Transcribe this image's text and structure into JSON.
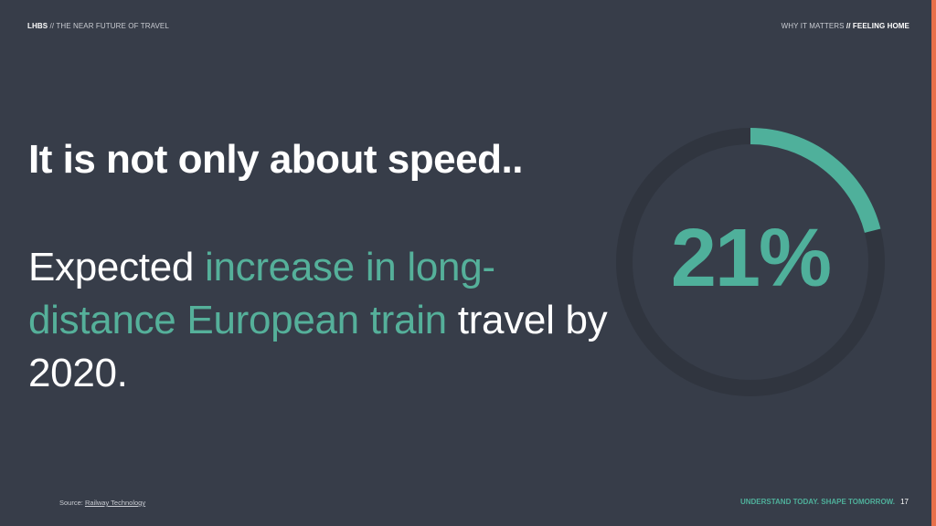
{
  "header": {
    "left_brand": "LHBS",
    "left_sep": " // ",
    "left_title": "THE NEAR FUTURE OF TRAVEL",
    "right_section": "WHY IT MATTERS",
    "right_sep": " // ",
    "right_topic": "FEELING HOME"
  },
  "main": {
    "title": "It is not only about speed..",
    "body_part1": "Expected ",
    "body_highlight": "increase in long-distance European train",
    "body_part2": " travel by 2020."
  },
  "stat": {
    "value_label": "21%",
    "fraction": 0.21,
    "ring_color": "#30353f",
    "arc_color": "#4fb09b"
  },
  "footer": {
    "source_label": "Source: ",
    "source_link": "Railway Technology",
    "tagline": "UNDERSTAND TODAY. SHAPE TOMORROW.",
    "page_number": "17"
  },
  "colors": {
    "background": "#373d49",
    "accent": "#4fb09b",
    "edge_bar": "#e8704a"
  }
}
